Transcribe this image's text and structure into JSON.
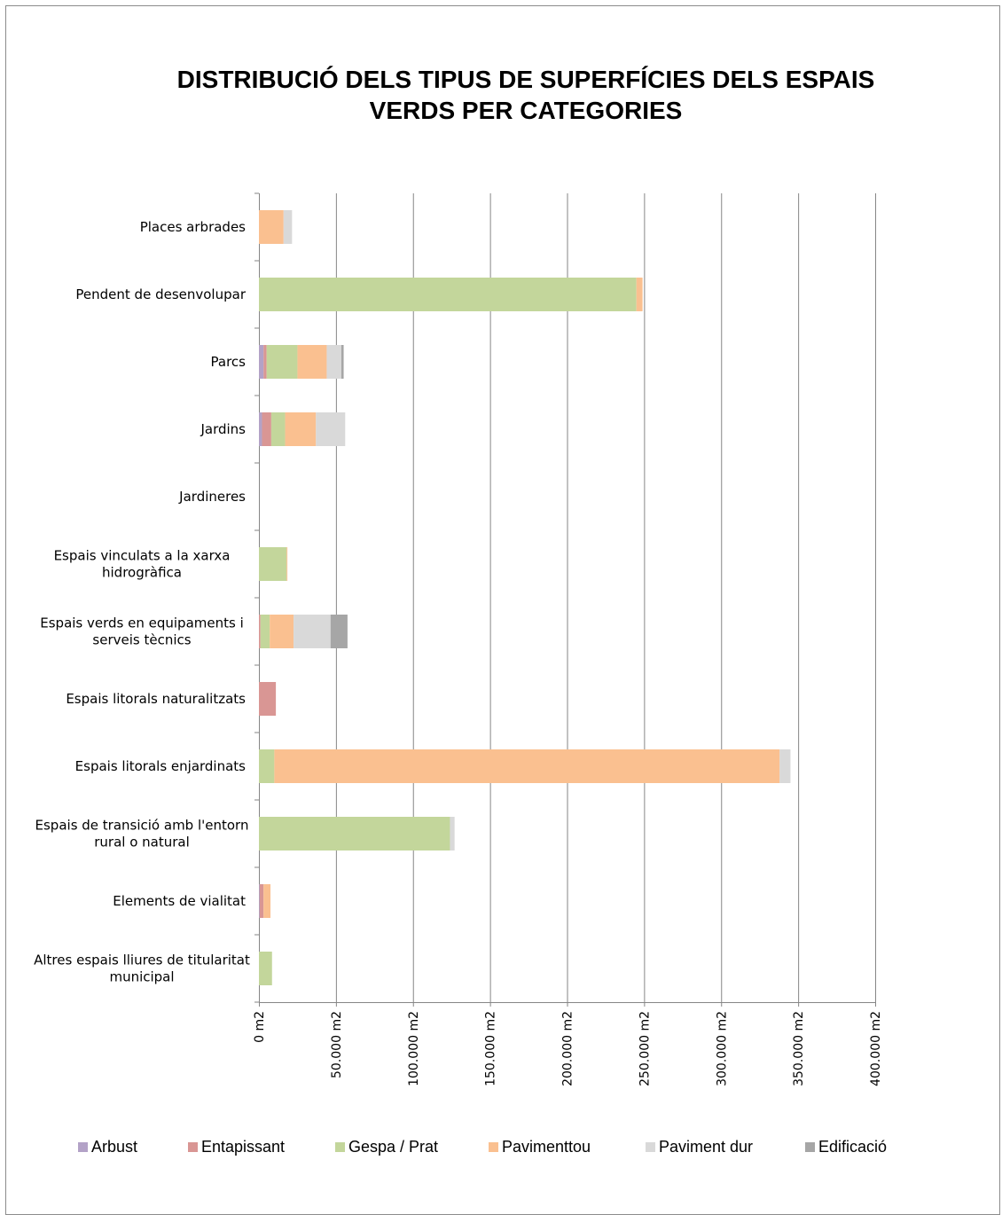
{
  "chart_data": {
    "type": "bar",
    "orientation": "horizontal",
    "stacked": true,
    "title_lines": [
      "DISTRIBUCIÓ DELS TIPUS DE SUPERFÍCIES DELS ESPAIS",
      "VERDS PER CATEGORIES"
    ],
    "categories": [
      [
        "Places arbrades"
      ],
      [
        "Pendent de desenvolupar"
      ],
      [
        "Parcs"
      ],
      [
        "Jardins"
      ],
      [
        "Jardineres"
      ],
      [
        "Espais vinculats a la xarxa",
        "hidrogràfica"
      ],
      [
        "Espais verds en equipaments i",
        "serveis tècnics"
      ],
      [
        "Espais litorals naturalitzats"
      ],
      [
        "Espais litorals enjardinats"
      ],
      [
        "Espais de transició amb l'entorn",
        "rural o natural"
      ],
      [
        "Elements de vialitat"
      ],
      [
        "Altres espais lliures de titularitat",
        "municipal"
      ]
    ],
    "series": [
      {
        "name": "Arbust",
        "color": "#b3a2c7",
        "values": [
          0,
          0,
          3000,
          2000,
          0,
          0,
          0,
          0,
          0,
          0,
          500,
          0
        ]
      },
      {
        "name": "Entapissant",
        "color": "#d99694",
        "values": [
          0,
          0,
          2000,
          6000,
          0,
          0,
          1000,
          11000,
          0,
          0,
          2500,
          0
        ]
      },
      {
        "name": "Gespa / Prat",
        "color": "#c3d69b",
        "values": [
          0,
          245000,
          20000,
          9000,
          0,
          18000,
          6000,
          0,
          10000,
          124000,
          0,
          8500
        ]
      },
      {
        "name": "Pavimenttou",
        "color": "#fac090",
        "values": [
          16000,
          4000,
          19000,
          20000,
          0,
          500,
          15500,
          0,
          328000,
          0,
          4500,
          0
        ]
      },
      {
        "name": "Paviment dur",
        "color": "#d9d9d9",
        "values": [
          5500,
          0,
          9500,
          19000,
          0,
          0,
          24000,
          0,
          7000,
          3000,
          0,
          0
        ]
      },
      {
        "name": "Edificació",
        "color": "#a6a6a6",
        "values": [
          0,
          0,
          1500,
          0,
          0,
          0,
          11000,
          0,
          0,
          0,
          0,
          0
        ]
      }
    ],
    "xlim": [
      0,
      400000
    ],
    "x_ticks": [
      0,
      50000,
      100000,
      150000,
      200000,
      250000,
      300000,
      350000,
      400000
    ],
    "x_tick_labels": [
      "0 m2",
      "50.000 m2",
      "100.000 m2",
      "150.000 m2",
      "200.000 m2",
      "250.000 m2",
      "300.000 m2",
      "350.000 m2",
      "400.000 m2"
    ],
    "grid": true,
    "legend_position": "bottom"
  },
  "gridline_color": "#868686"
}
